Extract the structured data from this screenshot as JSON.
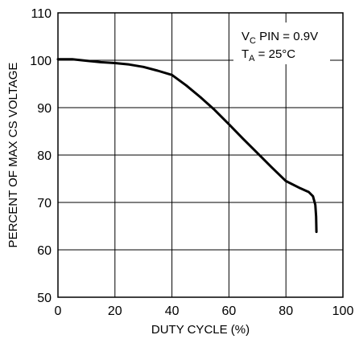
{
  "chart_data": {
    "type": "line",
    "title": "",
    "xlabel": "DUTY CYCLE (%)",
    "ylabel": "PERCENT OF MAX CS VOLTAGE",
    "xlim": [
      0,
      100
    ],
    "ylim": [
      50,
      110
    ],
    "xticks": [
      0,
      20,
      40,
      60,
      80,
      100
    ],
    "yticks": [
      50,
      60,
      70,
      80,
      90,
      100,
      110
    ],
    "grid": true,
    "legend": "none",
    "annotation": {
      "line1_prefix": "V",
      "line1_sub": "C",
      "line1_suffix": " PIN = 0.9V",
      "line2_prefix": "T",
      "line2_sub": "A",
      "line2_suffix": " = 25°C"
    },
    "series": [
      {
        "color": "#000000",
        "x": [
          0,
          5,
          10,
          15,
          20,
          25,
          30,
          35,
          40,
          45,
          50,
          55,
          60,
          65,
          70,
          75,
          80,
          85,
          88,
          89.5,
          90.3,
          90.6,
          90.7
        ],
        "y": [
          100.2,
          100.2,
          99.9,
          99.6,
          99.4,
          99.1,
          98.6,
          97.8,
          96.9,
          94.7,
          92.2,
          89.5,
          86.5,
          83.4,
          80.4,
          77.4,
          74.5,
          73.0,
          72.2,
          71.3,
          69.5,
          67.0,
          63.8
        ]
      }
    ]
  }
}
